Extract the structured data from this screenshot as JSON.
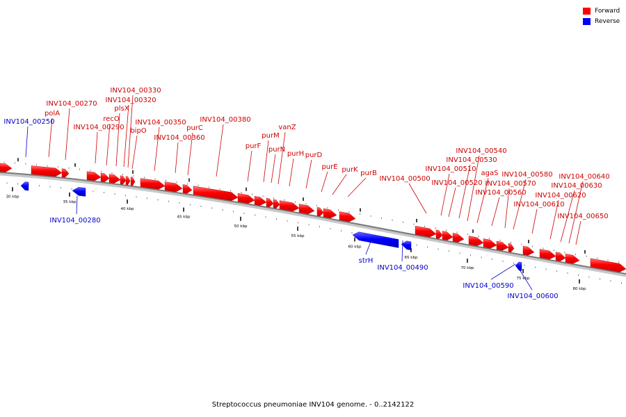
{
  "title": "Streptococcus pneumoniae INV104 genome. - 0..2142122",
  "legend": [
    {
      "label": "Forward",
      "color": "#ff0000"
    },
    {
      "label": "Reverse",
      "color": "#0000ff"
    }
  ],
  "colors": {
    "forward": "#ff0000",
    "reverse": "#0000ff",
    "backbone": "#808080",
    "label_forward": "#cc0000",
    "label_reverse": "#0000cc"
  },
  "ticks": [
    "30 kbp",
    "35 kbp",
    "40 kbp",
    "45 kbp",
    "50 kbp",
    "55 kbp",
    "60 kbp",
    "65 kbp",
    "70 kbp",
    "75 kbp",
    "80 kbp"
  ],
  "forward_labels": [
    "polA",
    "INV104_00270",
    "INV104_00290",
    "recO",
    "plsX",
    "INV104_00320",
    "INV104_00330",
    "bipO",
    "INV104_00350",
    "INV104_00360",
    "purC",
    "INV104_00380",
    "purF",
    "purM",
    "purN",
    "vanZ",
    "purH",
    "purD",
    "purE",
    "purK",
    "purB",
    "INV104_00500",
    "INV104_00510",
    "INV104_00520",
    "INV104_00530",
    "INV104_00540",
    "agaS",
    "INV104_00560",
    "INV104_00570",
    "INV104_00580",
    "INV104_00610",
    "INV104_00620",
    "INV104_00630",
    "INV104_00640",
    "INV104_00650"
  ],
  "reverse_labels": [
    "INV104_00250",
    "INV104_00280",
    "strH",
    "INV104_00490",
    "INV104_00590",
    "INV104_00600"
  ]
}
